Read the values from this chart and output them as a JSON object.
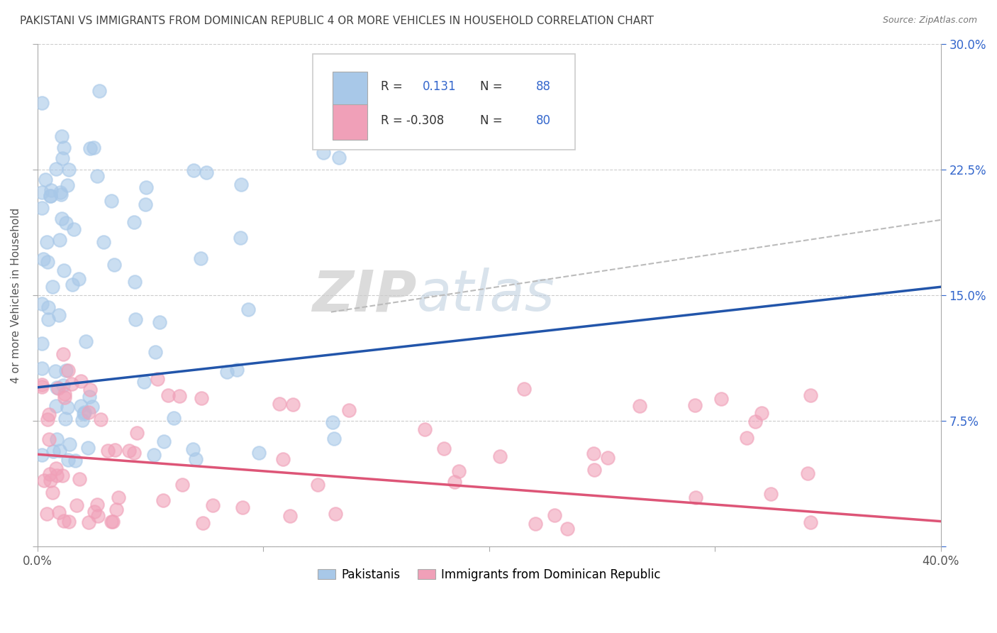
{
  "title": "PAKISTANI VS IMMIGRANTS FROM DOMINICAN REPUBLIC 4 OR MORE VEHICLES IN HOUSEHOLD CORRELATION CHART",
  "source": "Source: ZipAtlas.com",
  "ylabel": "4 or more Vehicles in Household",
  "xlim": [
    0.0,
    0.4
  ],
  "ylim": [
    0.0,
    0.3
  ],
  "xticks": [
    0.0,
    0.1,
    0.2,
    0.3,
    0.4
  ],
  "xticklabels": [
    "0.0%",
    "",
    "",
    "",
    "40.0%"
  ],
  "yticks": [
    0.0,
    0.075,
    0.15,
    0.225,
    0.3
  ],
  "yticklabels_right": [
    "",
    "7.5%",
    "15.0%",
    "22.5%",
    "30.0%"
  ],
  "blue_color": "#a8c8e8",
  "pink_color": "#f0a0b8",
  "blue_line_color": "#2255aa",
  "pink_line_color": "#dd5577",
  "gray_dash_color": "#bbbbbb",
  "R_blue": 0.131,
  "N_blue": 88,
  "R_pink": -0.308,
  "N_pink": 80,
  "legend_text_color": "#3366cc",
  "watermark_zip": "ZIP",
  "watermark_atlas": "atlas",
  "blue_line_x0": 0.0,
  "blue_line_y0": 0.095,
  "blue_line_x1": 0.4,
  "blue_line_y1": 0.155,
  "pink_line_x0": 0.0,
  "pink_line_y0": 0.055,
  "pink_line_x1": 0.4,
  "pink_line_y1": 0.015,
  "gray_line_x0": 0.13,
  "gray_line_y0": 0.14,
  "gray_line_x1": 0.4,
  "gray_line_y1": 0.195
}
